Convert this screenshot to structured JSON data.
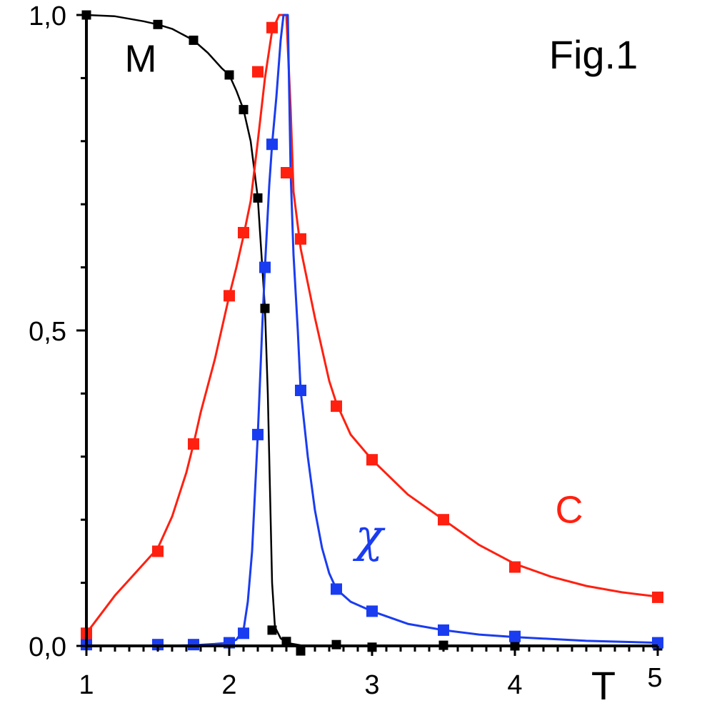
{
  "chart_data": {
    "type": "line",
    "title": "Fig.1",
    "xlabel": "T",
    "ylabel": "",
    "xlim": [
      1,
      5
    ],
    "ylim": [
      0,
      1
    ],
    "x_tick_labels": [
      {
        "value": 1,
        "label": "1"
      },
      {
        "value": 2,
        "label": "2"
      },
      {
        "value": 3,
        "label": "3"
      },
      {
        "value": 4,
        "label": "4"
      },
      {
        "value": 5,
        "label": "5"
      }
    ],
    "y_tick_labels": [
      {
        "value": 0,
        "label": "0,0"
      },
      {
        "value": 0.5,
        "label": "0,5"
      },
      {
        "value": 1,
        "label": "1,0"
      }
    ],
    "x_minor_step": 0.1,
    "y_minor_step": 0.1,
    "grid": false,
    "series": [
      {
        "name": "M",
        "color": "#000000",
        "markers": [
          [
            1.0,
            1.0
          ],
          [
            1.5,
            0.985
          ],
          [
            1.75,
            0.96
          ],
          [
            2.0,
            0.905
          ],
          [
            2.1,
            0.85
          ],
          [
            2.2,
            0.71
          ],
          [
            2.25,
            0.535
          ],
          [
            2.3,
            0.025
          ],
          [
            2.4,
            0.007
          ],
          [
            2.5,
            -0.008
          ],
          [
            2.75,
            0.002
          ],
          [
            3.0,
            -0.002
          ],
          [
            3.5,
            0.001
          ],
          [
            4.0,
            0.0
          ],
          [
            5.0,
            0.0
          ]
        ],
        "curve": [
          [
            1.0,
            1.0
          ],
          [
            1.2,
            0.998
          ],
          [
            1.4,
            0.99
          ],
          [
            1.5,
            0.985
          ],
          [
            1.6,
            0.978
          ],
          [
            1.75,
            0.96
          ],
          [
            1.85,
            0.94
          ],
          [
            1.95,
            0.915
          ],
          [
            2.0,
            0.905
          ],
          [
            2.05,
            0.88
          ],
          [
            2.1,
            0.85
          ],
          [
            2.15,
            0.8
          ],
          [
            2.2,
            0.71
          ],
          [
            2.22,
            0.64
          ],
          [
            2.25,
            0.535
          ],
          [
            2.27,
            0.4
          ],
          [
            2.29,
            0.2
          ],
          [
            2.3,
            0.1
          ],
          [
            2.32,
            0.03
          ],
          [
            2.36,
            0.012
          ],
          [
            2.4,
            0.005
          ],
          [
            2.5,
            0.001
          ],
          [
            2.75,
            0.0
          ],
          [
            3.0,
            0.0
          ],
          [
            5.0,
            0.0
          ]
        ]
      },
      {
        "name": "C",
        "color": "#ff2010",
        "markers": [
          [
            1.0,
            0.02
          ],
          [
            1.5,
            0.15
          ],
          [
            1.75,
            0.32
          ],
          [
            2.0,
            0.555
          ],
          [
            2.1,
            0.655
          ],
          [
            2.2,
            0.91
          ],
          [
            2.3,
            0.98
          ],
          [
            2.4,
            0.75
          ],
          [
            2.5,
            0.645
          ],
          [
            2.75,
            0.38
          ],
          [
            3.0,
            0.295
          ],
          [
            3.5,
            0.2
          ],
          [
            4.0,
            0.125
          ],
          [
            5.0,
            0.077
          ]
        ],
        "curve": [
          [
            1.0,
            0.02
          ],
          [
            1.1,
            0.05
          ],
          [
            1.2,
            0.08
          ],
          [
            1.3,
            0.105
          ],
          [
            1.4,
            0.13
          ],
          [
            1.5,
            0.155
          ],
          [
            1.6,
            0.205
          ],
          [
            1.7,
            0.275
          ],
          [
            1.75,
            0.32
          ],
          [
            1.8,
            0.37
          ],
          [
            1.9,
            0.455
          ],
          [
            2.0,
            0.555
          ],
          [
            2.05,
            0.6
          ],
          [
            2.1,
            0.65
          ],
          [
            2.15,
            0.705
          ],
          [
            2.2,
            0.8
          ],
          [
            2.25,
            0.9
          ],
          [
            2.3,
            0.975
          ],
          [
            2.35,
            1.0
          ],
          [
            2.4,
            1.0
          ],
          [
            2.43,
            0.85
          ],
          [
            2.45,
            0.72
          ],
          [
            2.5,
            0.63
          ],
          [
            2.6,
            0.52
          ],
          [
            2.7,
            0.42
          ],
          [
            2.75,
            0.385
          ],
          [
            2.85,
            0.335
          ],
          [
            3.0,
            0.295
          ],
          [
            3.25,
            0.24
          ],
          [
            3.5,
            0.2
          ],
          [
            3.75,
            0.16
          ],
          [
            4.0,
            0.13
          ],
          [
            4.25,
            0.11
          ],
          [
            4.5,
            0.095
          ],
          [
            4.75,
            0.085
          ],
          [
            5.0,
            0.078
          ]
        ]
      },
      {
        "name": "χ",
        "color": "#1a3cf0",
        "markers": [
          [
            1.0,
            0.002
          ],
          [
            1.5,
            0.002
          ],
          [
            1.75,
            0.002
          ],
          [
            2.0,
            0.005
          ],
          [
            2.1,
            0.02
          ],
          [
            2.2,
            0.335
          ],
          [
            2.25,
            0.6
          ],
          [
            2.3,
            0.795
          ],
          [
            2.5,
            0.405
          ],
          [
            2.75,
            0.09
          ],
          [
            3.0,
            0.055
          ],
          [
            3.5,
            0.025
          ],
          [
            4.0,
            0.015
          ],
          [
            5.0,
            0.005
          ]
        ],
        "curve": [
          [
            1.0,
            0.0
          ],
          [
            1.5,
            0.0
          ],
          [
            1.75,
            0.001
          ],
          [
            1.9,
            0.003
          ],
          [
            2.0,
            0.005
          ],
          [
            2.05,
            0.01
          ],
          [
            2.1,
            0.025
          ],
          [
            2.13,
            0.07
          ],
          [
            2.16,
            0.15
          ],
          [
            2.2,
            0.335
          ],
          [
            2.23,
            0.5
          ],
          [
            2.25,
            0.6
          ],
          [
            2.28,
            0.73
          ],
          [
            2.3,
            0.795
          ],
          [
            2.33,
            0.87
          ],
          [
            2.36,
            0.96
          ],
          [
            2.38,
            1.0
          ],
          [
            2.41,
            1.0
          ],
          [
            2.43,
            0.75
          ],
          [
            2.45,
            0.62
          ],
          [
            2.48,
            0.5
          ],
          [
            2.5,
            0.405
          ],
          [
            2.55,
            0.3
          ],
          [
            2.6,
            0.215
          ],
          [
            2.65,
            0.155
          ],
          [
            2.7,
            0.115
          ],
          [
            2.75,
            0.09
          ],
          [
            2.85,
            0.07
          ],
          [
            3.0,
            0.055
          ],
          [
            3.25,
            0.035
          ],
          [
            3.5,
            0.025
          ],
          [
            3.75,
            0.018
          ],
          [
            4.0,
            0.014
          ],
          [
            4.5,
            0.008
          ],
          [
            5.0,
            0.005
          ]
        ]
      }
    ],
    "annotations": [
      {
        "text": "M",
        "x": 1.38,
        "y": 0.91,
        "color": "#000000"
      },
      {
        "text": "Fig.1",
        "x": 4.55,
        "y": 0.915,
        "color": "#000000"
      },
      {
        "text": "C",
        "x": 4.38,
        "y": 0.195,
        "color": "#ff2010"
      },
      {
        "text": "χ",
        "x": 2.98,
        "y": 0.15,
        "color": "#1a3cf0"
      }
    ]
  }
}
